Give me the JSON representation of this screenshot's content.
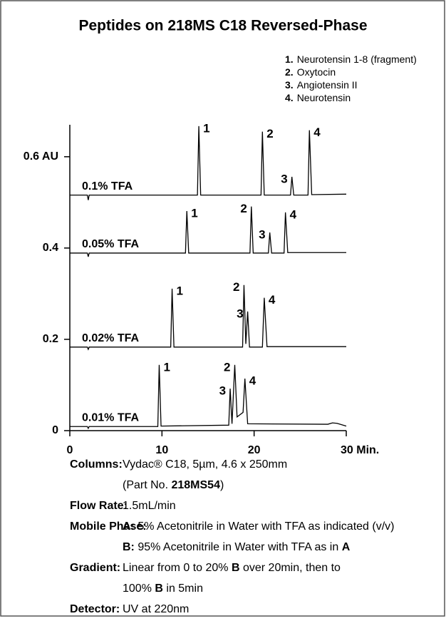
{
  "chart_data": {
    "type": "line",
    "title": "Peptides on 218MS C18 Reversed-Phase",
    "peak_legend": [
      {
        "number": "1.",
        "name": "Neurotensin 1-8 (fragment)"
      },
      {
        "number": "2.",
        "name": "Oxytocin"
      },
      {
        "number": "3.",
        "name": "Angiotensin II"
      },
      {
        "number": "4.",
        "name": "Neurotensin"
      }
    ],
    "xlim": [
      0,
      30
    ],
    "xticks": [
      0,
      10,
      20,
      {
        "value": 30,
        "label": "30 Min."
      }
    ],
    "ylim": [
      0,
      0.67
    ],
    "yticks": [
      0,
      0.2,
      0.4,
      {
        "value": 0.6,
        "label": "0.6 AU"
      }
    ],
    "series": [
      {
        "name": "0.1% TFA",
        "color": "#000000",
        "peak_labels": [
          "1",
          "2",
          "3",
          "4"
        ],
        "x": [
          0,
          1.9,
          2.0,
          2.1,
          13.85,
          14.0,
          14.2,
          20.75,
          20.9,
          21.1,
          23.95,
          24.1,
          24.3,
          25.85,
          26.0,
          26.25,
          30
        ],
        "values": [
          0.516,
          0.516,
          0.505,
          0.516,
          0.516,
          0.667,
          0.516,
          0.516,
          0.655,
          0.516,
          0.516,
          0.556,
          0.516,
          0.516,
          0.658,
          0.517,
          0.518
        ]
      },
      {
        "name": "0.05% TFA",
        "color": "#000000",
        "peak_labels": [
          "1",
          "2",
          "3",
          "4"
        ],
        "x": [
          0,
          1.9,
          2.0,
          2.1,
          12.55,
          12.7,
          12.9,
          19.55,
          19.7,
          19.9,
          21.55,
          21.7,
          21.9,
          23.25,
          23.4,
          23.65,
          30
        ],
        "values": [
          0.389,
          0.389,
          0.381,
          0.389,
          0.389,
          0.481,
          0.389,
          0.389,
          0.491,
          0.389,
          0.389,
          0.434,
          0.389,
          0.389,
          0.478,
          0.39,
          0.39
        ]
      },
      {
        "name": "0.02% TFA",
        "color": "#000000",
        "peak_labels": [
          "1",
          "2",
          "3",
          "4"
        ],
        "x": [
          0,
          1.9,
          2.0,
          2.1,
          10.95,
          11.1,
          11.3,
          18.75,
          18.9,
          19.1,
          19.3,
          19.5,
          20.9,
          21.1,
          21.4,
          30
        ],
        "values": [
          0.183,
          0.183,
          0.178,
          0.183,
          0.183,
          0.311,
          0.183,
          0.183,
          0.319,
          0.19,
          0.261,
          0.183,
          0.183,
          0.291,
          0.184,
          0.184
        ]
      },
      {
        "name": "0.01% TFA",
        "color": "#000000",
        "peak_labels": [
          "1",
          "3",
          "2",
          "4"
        ],
        "x": [
          0,
          1.9,
          2.0,
          2.1,
          9.55,
          9.7,
          9.9,
          17.25,
          17.4,
          17.6,
          17.9,
          18.15,
          18.8,
          19.0,
          19.3,
          28.0,
          28.5,
          29.0,
          30
        ],
        "values": [
          0.009,
          0.009,
          0.005,
          0.009,
          0.009,
          0.144,
          0.01,
          0.012,
          0.092,
          0.015,
          0.144,
          0.03,
          0.04,
          0.114,
          0.015,
          0.014,
          0.017,
          0.016,
          0.01
        ]
      }
    ],
    "conditions": [
      {
        "label": "Columns:",
        "lines": [
          [
            {
              "text": "Vydac® C18, 5µm, 4.6 x 250mm"
            }
          ],
          [
            {
              "text": "(Part No. "
            },
            {
              "text": "218MS54",
              "bold": true
            },
            {
              "text": ")"
            }
          ]
        ]
      },
      {
        "label": "Flow Rate:",
        "lines": [
          [
            {
              "text": "1.5mL/min"
            }
          ]
        ]
      },
      {
        "label": "Mobile Phase:",
        "lines": [
          [
            {
              "text": "A:",
              "bold": true
            },
            {
              "text": " 5% Acetonitrile in Water with TFA as indicated (v/v)"
            }
          ],
          [
            {
              "text": "B:",
              "bold": true
            },
            {
              "text": " 95% Acetonitrile in Water with TFA as in "
            },
            {
              "text": "A",
              "bold": true
            }
          ]
        ]
      },
      {
        "label": "Gradient:",
        "lines": [
          [
            {
              "text": "Linear from 0 to 20% "
            },
            {
              "text": "B",
              "bold": true
            },
            {
              "text": " over 20min, then to"
            }
          ],
          [
            {
              "text": "100% "
            },
            {
              "text": "B",
              "bold": true
            },
            {
              "text": " in 5min"
            }
          ]
        ]
      },
      {
        "label": "Detector:",
        "lines": [
          [
            {
              "text": "UV at 220nm"
            }
          ]
        ]
      }
    ]
  }
}
